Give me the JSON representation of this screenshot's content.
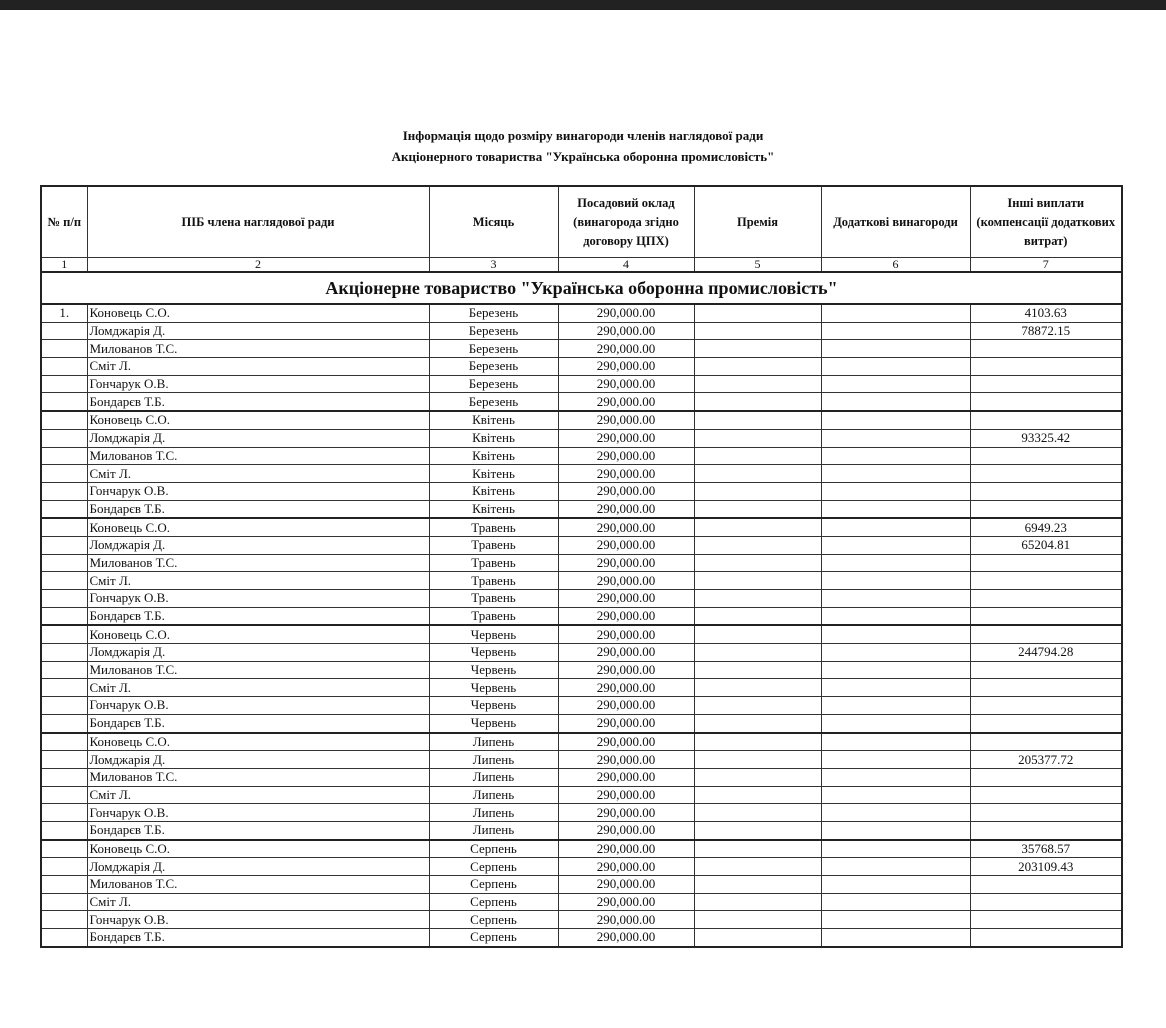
{
  "title_line1": "Інформація щодо розміру винагороди членів наглядової ради",
  "title_line2": "Акціонерного товариства \"Українська оборонна промисловість\"",
  "headers": [
    "№ п/п",
    "ПІБ члена наглядової ради",
    "Місяць",
    "Посадовий оклад (винагорода згідно договору ЦПХ)",
    "Премія",
    "Додаткові винагороди",
    "Інші виплати (компенсації додаткових витрат)"
  ],
  "column_numbers": [
    "1",
    "2",
    "3",
    "4",
    "5",
    "6",
    "7"
  ],
  "organization": "Акціонерне товариство \"Українська оборонна промисловість\"",
  "rows": [
    [
      "1.",
      "Коновець С.О.",
      "Березень",
      "290,000.00",
      "",
      "",
      "4103.63"
    ],
    [
      "",
      "Ломджарія Д.",
      "Березень",
      "290,000.00",
      "",
      "",
      "78872.15"
    ],
    [
      "",
      "Милованов Т.С.",
      "Березень",
      "290,000.00",
      "",
      "",
      ""
    ],
    [
      "",
      "Сміт Л.",
      "Березень",
      "290,000.00",
      "",
      "",
      ""
    ],
    [
      "",
      "Гончарук О.В.",
      "Березень",
      "290,000.00",
      "",
      "",
      ""
    ],
    [
      "",
      "Бондарєв Т.Б.",
      "Березень",
      "290,000.00",
      "",
      "",
      ""
    ],
    [
      "",
      "Коновець С.О.",
      "Квітень",
      "290,000.00",
      "",
      "",
      ""
    ],
    [
      "",
      "Ломджарія Д.",
      "Квітень",
      "290,000.00",
      "",
      "",
      "93325.42"
    ],
    [
      "",
      "Милованов Т.С.",
      "Квітень",
      "290,000.00",
      "",
      "",
      ""
    ],
    [
      "",
      "Сміт Л.",
      "Квітень",
      "290,000.00",
      "",
      "",
      ""
    ],
    [
      "",
      "Гончарук О.В.",
      "Квітень",
      "290,000.00",
      "",
      "",
      ""
    ],
    [
      "",
      "Бондарєв Т.Б.",
      "Квітень",
      "290,000.00",
      "",
      "",
      ""
    ],
    [
      "",
      "Коновець С.О.",
      "Травень",
      "290,000.00",
      "",
      "",
      "6949.23"
    ],
    [
      "",
      "Ломджарія Д.",
      "Травень",
      "290,000.00",
      "",
      "",
      "65204.81"
    ],
    [
      "",
      "Милованов Т.С.",
      "Травень",
      "290,000.00",
      "",
      "",
      ""
    ],
    [
      "",
      "Сміт Л.",
      "Травень",
      "290,000.00",
      "",
      "",
      ""
    ],
    [
      "",
      "Гончарук О.В.",
      "Травень",
      "290,000.00",
      "",
      "",
      ""
    ],
    [
      "",
      "Бондарєв Т.Б.",
      "Травень",
      "290,000.00",
      "",
      "",
      ""
    ],
    [
      "",
      "Коновець С.О.",
      "Червень",
      "290,000.00",
      "",
      "",
      ""
    ],
    [
      "",
      "Ломджарія Д.",
      "Червень",
      "290,000.00",
      "",
      "",
      "244794.28"
    ],
    [
      "",
      "Милованов Т.С.",
      "Червень",
      "290,000.00",
      "",
      "",
      ""
    ],
    [
      "",
      "Сміт Л.",
      "Червень",
      "290,000.00",
      "",
      "",
      ""
    ],
    [
      "",
      "Гончарук О.В.",
      "Червень",
      "290,000.00",
      "",
      "",
      ""
    ],
    [
      "",
      "Бондарєв Т.Б.",
      "Червень",
      "290,000.00",
      "",
      "",
      ""
    ],
    [
      "",
      "Коновець С.О.",
      "Липень",
      "290,000.00",
      "",
      "",
      ""
    ],
    [
      "",
      "Ломджарія Д.",
      "Липень",
      "290,000.00",
      "",
      "",
      "205377.72"
    ],
    [
      "",
      "Милованов Т.С.",
      "Липень",
      "290,000.00",
      "",
      "",
      ""
    ],
    [
      "",
      "Сміт Л.",
      "Липень",
      "290,000.00",
      "",
      "",
      ""
    ],
    [
      "",
      "Гончарук О.В.",
      "Липень",
      "290,000.00",
      "",
      "",
      ""
    ],
    [
      "",
      "Бондарєв Т.Б.",
      "Липень",
      "290,000.00",
      "",
      "",
      ""
    ],
    [
      "",
      "Коновець С.О.",
      "Серпень",
      "290,000.00",
      "",
      "",
      "35768.57"
    ],
    [
      "",
      "Ломджарія Д.",
      "Серпень",
      "290,000.00",
      "",
      "",
      "203109.43"
    ],
    [
      "",
      "Милованов Т.С.",
      "Серпень",
      "290,000.00",
      "",
      "",
      ""
    ],
    [
      "",
      "Сміт Л.",
      "Серпень",
      "290,000.00",
      "",
      "",
      ""
    ],
    [
      "",
      "Гончарук О.В.",
      "Серпень",
      "290,000.00",
      "",
      "",
      ""
    ],
    [
      "",
      "Бондарєв Т.Б.",
      "Серпень",
      "290,000.00",
      "",
      "",
      ""
    ]
  ]
}
